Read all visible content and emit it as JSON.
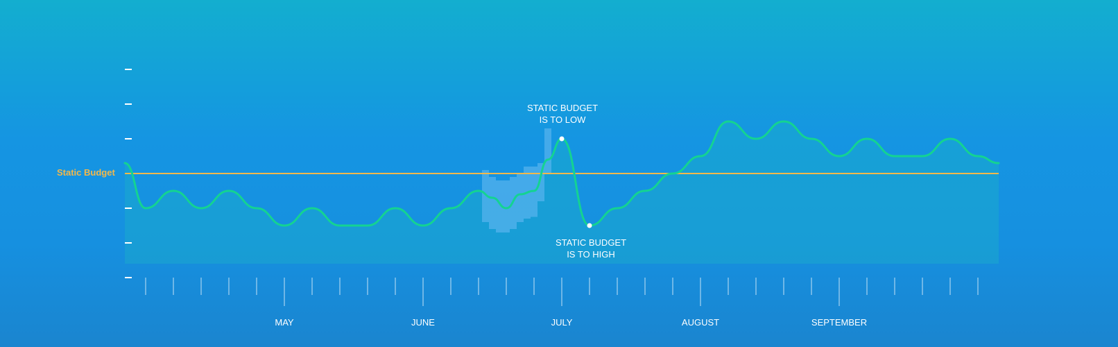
{
  "chart_data": {
    "type": "area",
    "title": "",
    "xlabel": "",
    "ylabel": "",
    "months": [
      "MAY",
      "JUNE",
      "JULY",
      "AUGUST",
      "SEPTEMBER"
    ],
    "ylim": [
      0,
      6
    ],
    "y_ticks": [
      0,
      1,
      2,
      3,
      4,
      5,
      6
    ],
    "x_range": [
      0,
      31.5
    ],
    "month_positions": [
      5.75,
      10.75,
      15.75,
      20.75,
      25.75
    ],
    "static_budget": 3,
    "static_budget_label": "Static Budget",
    "series": [
      {
        "type": "line",
        "x": [
          0,
          0.75,
          1.75,
          2.75,
          3.75,
          4.75,
          5.75,
          6.75,
          7.75,
          8.75,
          9.75,
          10.75,
          11.75,
          12.75,
          13.25,
          13.75,
          14.25,
          14.75,
          15.25,
          15.75,
          16.75,
          17.75,
          18.75,
          19.75,
          20.75,
          21.75,
          22.75,
          23.75,
          24.75,
          25.75,
          26.75,
          27.75,
          28.75,
          29.75,
          30.75,
          31.5
        ],
        "y": [
          3.3,
          2,
          2.5,
          2,
          2.5,
          2,
          1.5,
          2,
          1.5,
          1.5,
          2,
          1.5,
          2,
          2.5,
          2.3,
          2,
          2.4,
          2.5,
          3.4,
          4,
          1.5,
          2,
          2.5,
          3,
          3.5,
          4.5,
          4,
          4.5,
          4,
          3.5,
          4,
          3.5,
          3.5,
          4,
          3.5,
          3.3
        ]
      },
      {
        "type": "band",
        "x": [
          13,
          13.25,
          13.5,
          13.75,
          14,
          14.25,
          14.5,
          14.75,
          15,
          15.25
        ],
        "low": [
          1.6,
          1.4,
          1.3,
          1.3,
          1.4,
          1.6,
          1.7,
          1.75,
          2.2,
          3
        ],
        "high": [
          3.1,
          2.9,
          2.8,
          2.8,
          2.9,
          3,
          3.2,
          3.2,
          3.3,
          4.3
        ]
      }
    ],
    "annotations": [
      {
        "lines": [
          "STATIC BUDGET",
          "IS TO LOW"
        ],
        "x": 15.75,
        "y": 4
      },
      {
        "lines": [
          "STATIC BUDGET",
          "IS TO HIGH"
        ],
        "x": 16.75,
        "y": 1.5
      }
    ]
  },
  "colors": {
    "line": "#14d392",
    "budget": "#f2b84b",
    "area": "#1cb7c4",
    "band": "#58b3ee"
  }
}
